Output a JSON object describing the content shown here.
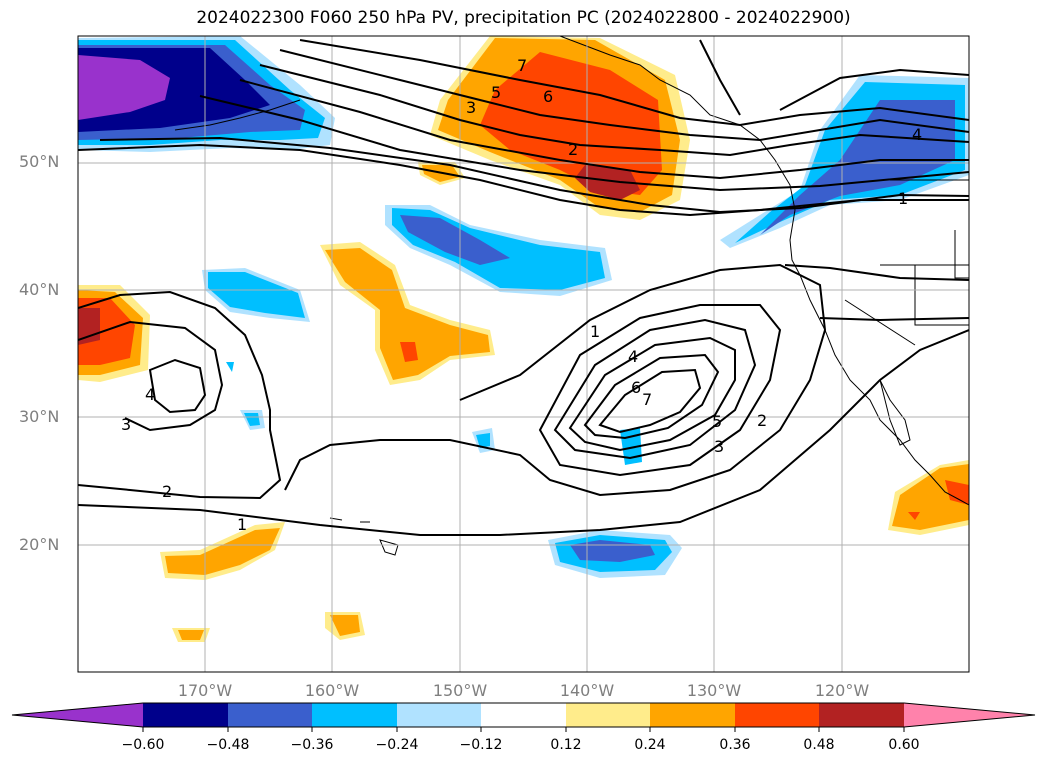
{
  "title": "2024022300 F060 250 hPa PV, precipitation PC (2024022800 - 2024022900)",
  "lat_labels": [
    "50°N",
    "40°N",
    "30°N",
    "20°N"
  ],
  "lon_labels": [
    "170°W",
    "160°W",
    "150°W",
    "140°W",
    "130°W",
    "120°W"
  ],
  "colorbar": {
    "tick_labels": [
      "−0.60",
      "−0.48",
      "−0.36",
      "−0.24",
      "−0.12",
      "0.12",
      "0.24",
      "0.36",
      "0.48",
      "0.60"
    ],
    "colors": [
      "#9932CC",
      "#00008B",
      "#3A5FCD",
      "#00BFFF",
      "#B0E2FF",
      "#FFFFFF",
      "#FFEC8B",
      "#FFA500",
      "#FF4500",
      "#B22222",
      "#FF82AB"
    ]
  },
  "contour_labels": {
    "n7": "7",
    "n5": "5",
    "n6": "6",
    "n3": "3",
    "n2": "2",
    "n4": "4",
    "n1": "1",
    "w4": "4",
    "w3": "3",
    "w2": "2",
    "w1": "1",
    "s1": "1",
    "s4": "4",
    "s6": "6",
    "s7": "7",
    "s5": "5",
    "s3": "3",
    "s2": "2"
  }
}
